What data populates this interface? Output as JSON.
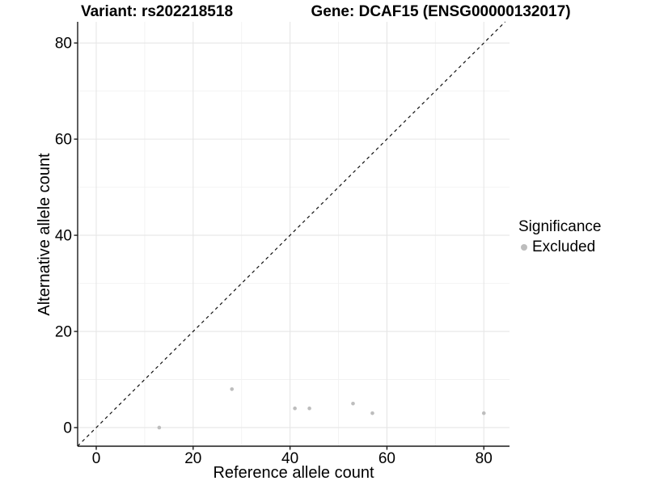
{
  "titles": {
    "left": "Variant: rs202218518",
    "right": "Gene: DCAF15 (ENSG00000132017)"
  },
  "axes": {
    "x_label": "Reference allele count",
    "y_label": "Alternative allele count"
  },
  "legend": {
    "title": "Significance",
    "items": [
      {
        "label": "Excluded",
        "color": "#BDBDBD",
        "marker": "circle"
      }
    ]
  },
  "colors": {
    "background": "#FFFFFF",
    "text": "#000000",
    "axis_line": "#1A1A1A",
    "grid_major": "#E6E6E6",
    "grid_minor": "#F2F2F2",
    "point": "#BDBDBD",
    "reference_line": "#111111"
  },
  "chart_data": {
    "type": "scatter",
    "title": "Variant: rs202218518 | Gene: DCAF15 (ENSG00000132017)",
    "xlabel": "Reference allele count",
    "ylabel": "Alternative allele count",
    "xlim": [
      -3.84,
      85.3
    ],
    "ylim": [
      -3.87,
      84.4
    ],
    "x_ticks": [
      0,
      20,
      40,
      60,
      80
    ],
    "y_ticks": [
      0,
      20,
      40,
      60,
      80
    ],
    "x_minor": [
      10,
      30,
      50,
      70
    ],
    "y_minor": [
      10,
      30,
      50,
      70
    ],
    "grid": "major+minor",
    "legend_position": "right",
    "series": [
      {
        "name": "Excluded",
        "color": "#BDBDBD",
        "marker": "circle",
        "points": [
          [
            13,
            0
          ],
          [
            28,
            8
          ],
          [
            41,
            4
          ],
          [
            44,
            4
          ],
          [
            53,
            5
          ],
          [
            57,
            3
          ],
          [
            80,
            3
          ]
        ]
      }
    ],
    "reference_line": {
      "kind": "identity",
      "linetype": "dashed",
      "color": "#111111"
    }
  }
}
